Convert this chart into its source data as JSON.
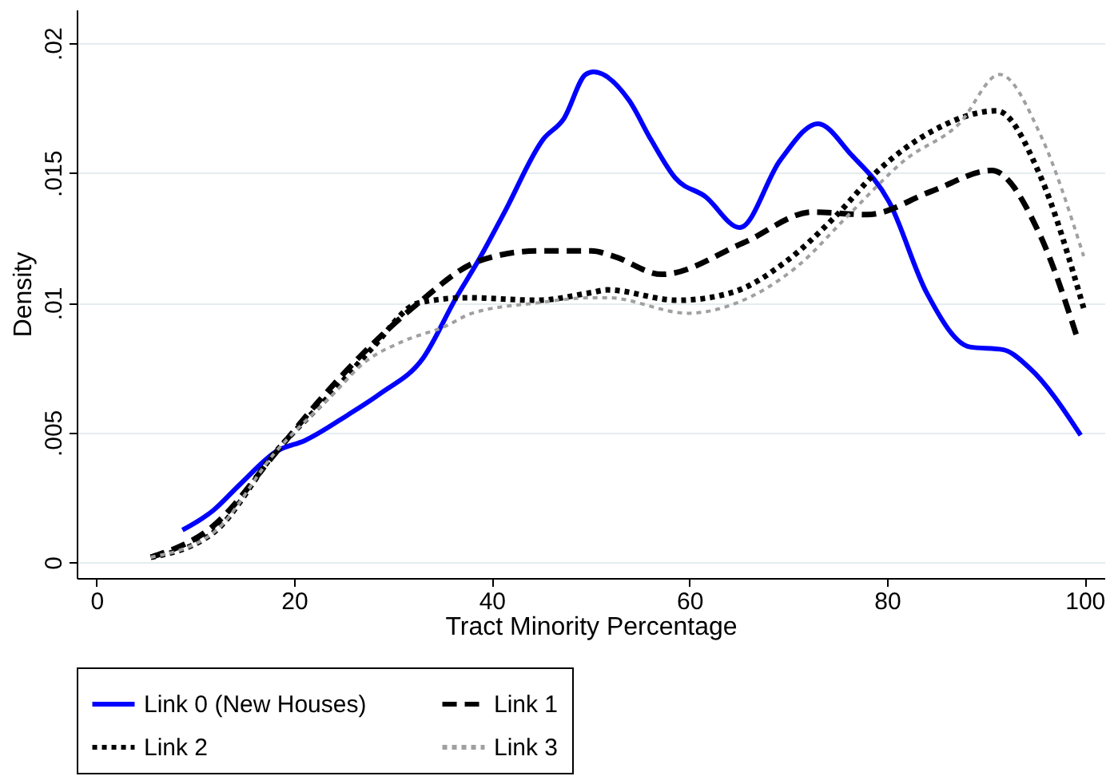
{
  "chart_data": {
    "type": "line",
    "xlabel": "Tract Minority Percentage",
    "ylabel": "Density",
    "xlim": [
      -2,
      102
    ],
    "xticks": [
      0,
      20,
      40,
      60,
      80,
      100
    ],
    "ylim": [
      -0.0006,
      0.0213
    ],
    "yticks": [
      0,
      {
        "value": 0.005,
        "label": ".005"
      },
      {
        "value": 0.01,
        "label": ".01"
      },
      {
        "value": 0.015,
        "label": ".015"
      },
      {
        "value": 0.02,
        "label": ".02"
      }
    ],
    "grid": "y",
    "legend": "bottom",
    "marker": "none",
    "series": [
      {
        "name": "Link 0 (New Houses)",
        "color": "#0000ff",
        "line_style": "solid",
        "x": [
          8.7,
          11.8,
          14.5,
          18.3,
          21.1,
          25.5,
          28.7,
          33.1,
          36.4,
          38.6,
          41.3,
          45.2,
          47.3,
          49.5,
          50.3,
          53.9,
          56.1,
          58.6,
          61.6,
          65.1,
          69.2,
          73.0,
          76.4,
          80.2,
          84.0,
          88.4,
          91.7,
          94.4,
          99.6
        ],
        "values": [
          0.00125,
          0.002,
          0.003,
          0.0043,
          0.0047,
          0.0057,
          0.0065,
          0.0079,
          0.0102,
          0.0116,
          0.0135,
          0.0163,
          0.0171,
          0.0188,
          0.0189,
          0.0178,
          0.0163,
          0.0148,
          0.0141,
          0.0129,
          0.0155,
          0.0169,
          0.0157,
          0.0139,
          0.0104,
          0.0083,
          0.0082,
          0.0075,
          0.0049
        ]
      },
      {
        "name": "Link 1",
        "color": "#000000",
        "line_style": "dashed",
        "x": [
          5.5,
          11.8,
          18.3,
          22.7,
          27.1,
          32.6,
          38.6,
          44.6,
          50.1,
          52.3,
          57.2,
          65.4,
          72.5,
          78.0,
          84.5,
          90.6,
          95.5,
          99.3
        ],
        "values": [
          0.0002,
          0.0014,
          0.0043,
          0.0063,
          0.0081,
          0.01,
          0.0116,
          0.012,
          0.012,
          0.0118,
          0.0111,
          0.0123,
          0.0135,
          0.0134,
          0.0143,
          0.0151,
          0.0126,
          0.0086
        ]
      },
      {
        "name": "Link 2",
        "color": "#000000",
        "line_style": "dotted",
        "x": [
          5.5,
          12,
          18,
          24,
          28,
          32.6,
          37.5,
          44.6,
          50.1,
          51.7,
          58.8,
          64.3,
          69.8,
          74.7,
          79.1,
          84.5,
          91.1,
          95.5,
          99.9
        ],
        "values": [
          0.0002,
          0.0012,
          0.0042,
          0.0066,
          0.0083,
          0.01,
          0.0102,
          0.0101,
          0.0104,
          0.0105,
          0.0101,
          0.0104,
          0.0116,
          0.0133,
          0.0151,
          0.0166,
          0.0174,
          0.0149,
          0.0098
        ]
      },
      {
        "name": "Link 3",
        "color": "#a0a0a0",
        "line_style": "dotted",
        "x": [
          5.5,
          12,
          18,
          24,
          27.1,
          30.9,
          35.3,
          38.0,
          44.6,
          50.1,
          51.7,
          59.9,
          64.8,
          70.9,
          76.4,
          81.8,
          87.3,
          91.4,
          95.5,
          99.9
        ],
        "values": [
          0.0002,
          0.0012,
          0.0042,
          0.0065,
          0.0077,
          0.0085,
          0.0091,
          0.0096,
          0.01,
          0.0102,
          0.0102,
          0.0096,
          0.01,
          0.0114,
          0.0135,
          0.0155,
          0.0169,
          0.0188,
          0.0165,
          0.0118
        ]
      }
    ]
  }
}
